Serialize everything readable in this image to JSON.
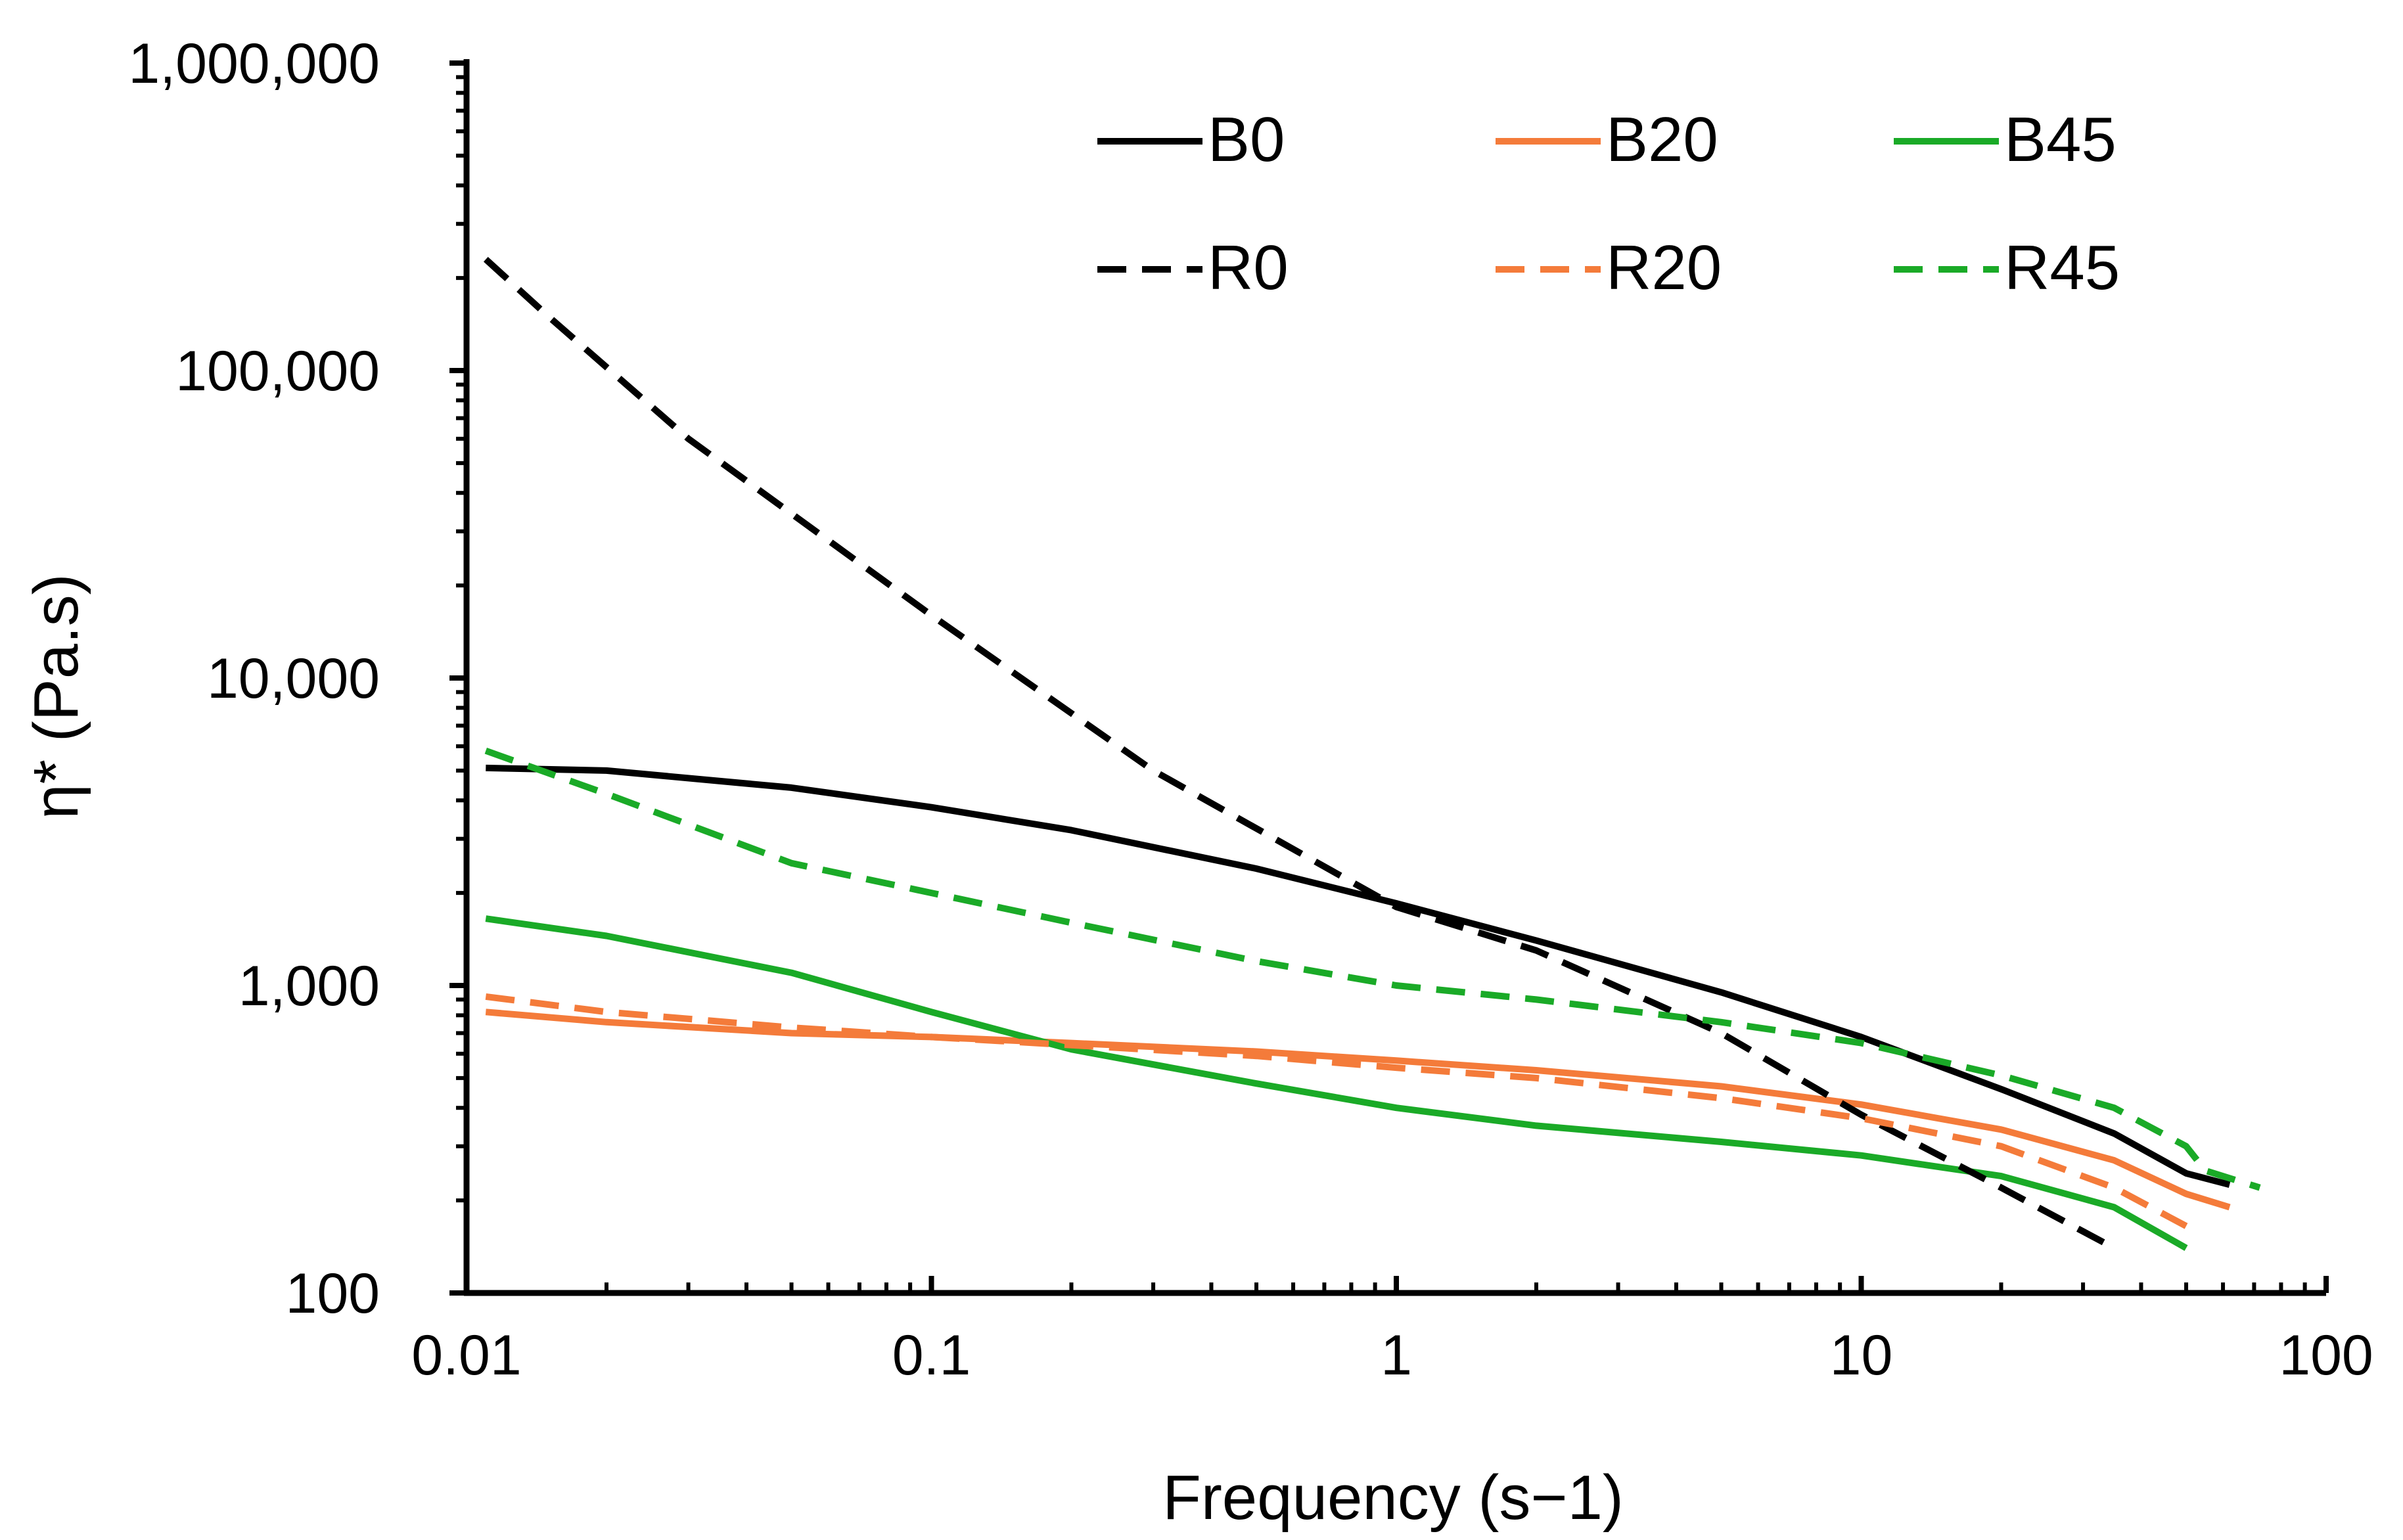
{
  "chart_data": {
    "type": "line",
    "title": "",
    "xlabel": "Frequency (s−1)",
    "ylabel": "η* (Pa.s)",
    "xscale": "log",
    "yscale": "log",
    "xlim": [
      0.01,
      100
    ],
    "ylim": [
      100,
      1000000
    ],
    "x_tick_labels": [
      "0.01",
      "0.1",
      "1",
      "10",
      "100"
    ],
    "x_tick_values": [
      0.01,
      0.1,
      1,
      10,
      100
    ],
    "y_tick_labels": [
      "100",
      "1,000",
      "10,000",
      "100,000",
      "1,000,000"
    ],
    "y_tick_values": [
      100,
      1000,
      10000,
      100000,
      1000000
    ],
    "grid": false,
    "legend_position": "top-right",
    "colors": {
      "black": "#000000",
      "orange": "#f47b3a",
      "green": "#1aaa27"
    },
    "series": [
      {
        "name": "B0",
        "color": "#000000",
        "dash": "solid",
        "x": [
          0.011,
          0.02,
          0.05,
          0.1,
          0.2,
          0.5,
          1,
          2,
          5,
          10,
          20,
          35,
          50,
          62
        ],
        "y": [
          5100,
          5000,
          4400,
          3800,
          3200,
          2400,
          1850,
          1400,
          950,
          680,
          460,
          330,
          245,
          225
        ]
      },
      {
        "name": "B20",
        "color": "#f47b3a",
        "dash": "solid",
        "x": [
          0.011,
          0.02,
          0.05,
          0.1,
          0.2,
          0.5,
          1,
          2,
          5,
          10,
          20,
          35,
          50,
          62
        ],
        "y": [
          820,
          760,
          700,
          680,
          650,
          610,
          570,
          530,
          470,
          410,
          340,
          270,
          210,
          190
        ]
      },
      {
        "name": "B45",
        "color": "#1aaa27",
        "dash": "solid",
        "x": [
          0.011,
          0.02,
          0.05,
          0.1,
          0.2,
          0.5,
          1,
          2,
          5,
          10,
          20,
          35,
          50
        ],
        "y": [
          1650,
          1450,
          1100,
          820,
          620,
          480,
          400,
          350,
          310,
          280,
          240,
          190,
          140
        ]
      },
      {
        "name": "R0",
        "color": "#000000",
        "dash": "dashed",
        "x": [
          0.011,
          0.015,
          0.03,
          0.1,
          0.3,
          1,
          2,
          5,
          10,
          20,
          35
        ],
        "y": [
          230000,
          150000,
          60000,
          16000,
          5000,
          1800,
          1300,
          700,
          380,
          220,
          140
        ]
      },
      {
        "name": "R20",
        "color": "#f47b3a",
        "dash": "dashed",
        "x": [
          0.011,
          0.02,
          0.05,
          0.1,
          0.2,
          0.5,
          1,
          2,
          5,
          10,
          20,
          35,
          50
        ],
        "y": [
          920,
          820,
          730,
          680,
          640,
          590,
          540,
          500,
          430,
          370,
          300,
          220,
          165
        ]
      },
      {
        "name": "R45",
        "color": "#1aaa27",
        "dash": "dashed",
        "x": [
          0.011,
          0.02,
          0.05,
          0.1,
          0.2,
          0.5,
          1,
          2,
          5,
          10,
          20,
          35,
          50,
          55,
          72
        ],
        "y": [
          5800,
          4200,
          2500,
          2000,
          1600,
          1200,
          1000,
          900,
          760,
          650,
          510,
          400,
          300,
          250,
          220
        ]
      }
    ],
    "legend_layout": [
      [
        "B0",
        "B20",
        "B45"
      ],
      [
        "R0",
        "R20",
        "R45"
      ]
    ]
  }
}
